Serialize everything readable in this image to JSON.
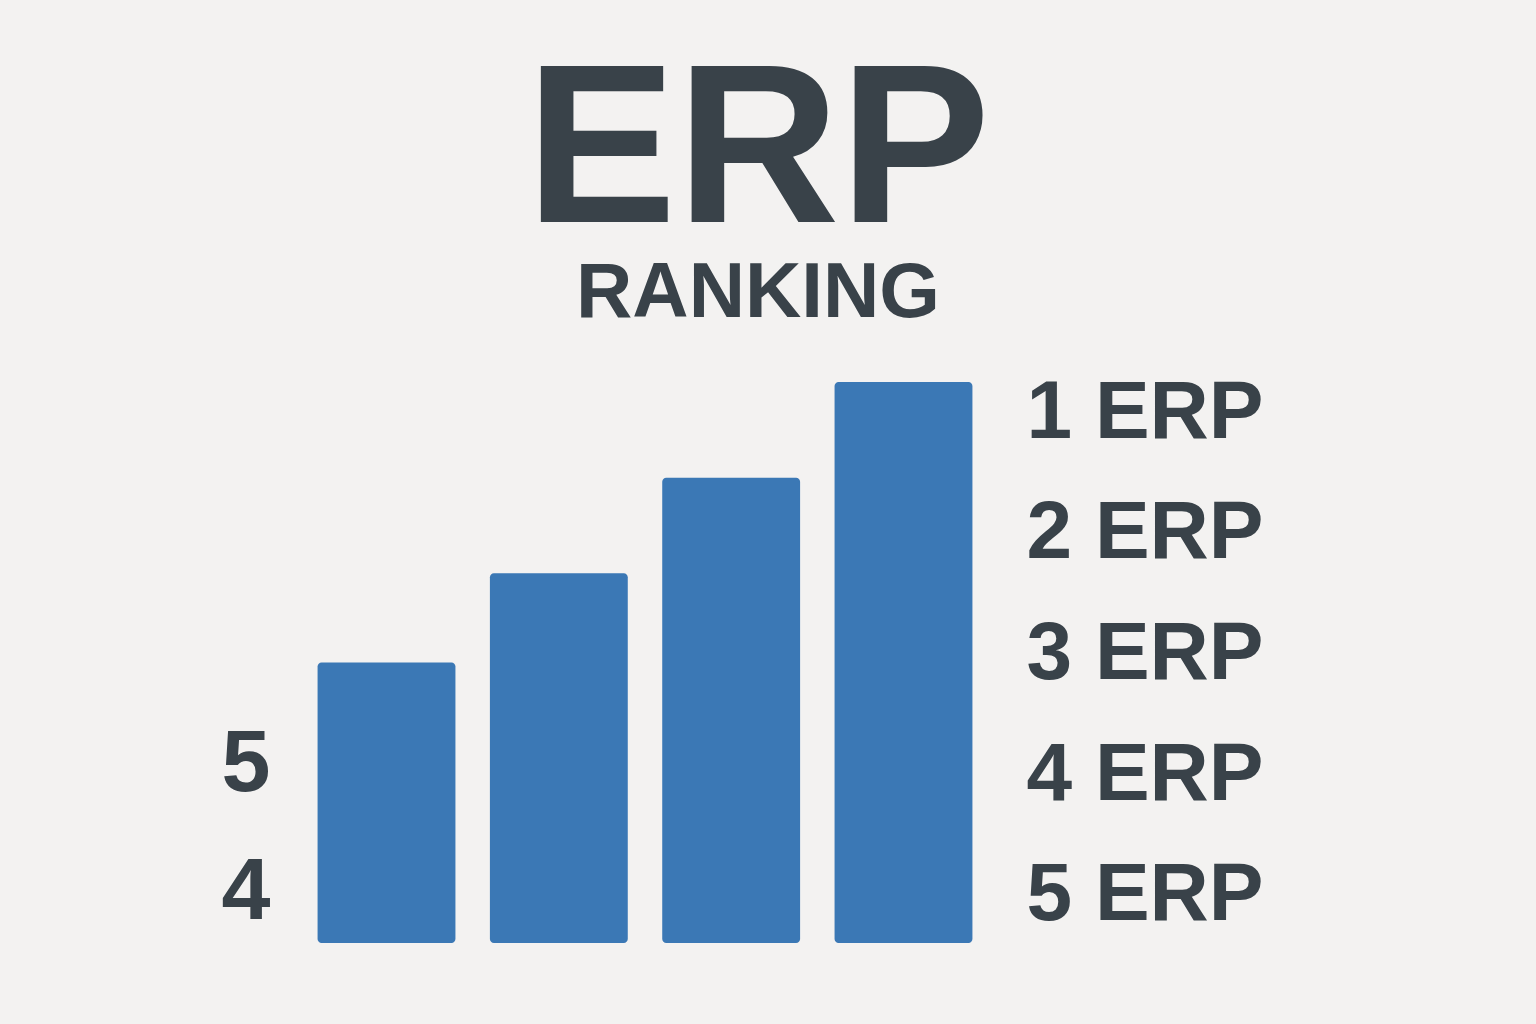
{
  "chart_data": {
    "type": "bar",
    "title": "ERP",
    "subtitle": "RANKING",
    "categories": [
      null,
      null,
      null,
      null
    ],
    "values": [
      5.8,
      6.5,
      7.25,
      8.0
    ],
    "color": "#3b78b5",
    "ylim": [
      3.6,
      8.0
    ],
    "yticks": [
      4,
      5
    ],
    "y2lim": [
      5.4,
      0.75
    ],
    "y2ticks": [
      {
        "value": 1,
        "label": "1 ERP"
      },
      {
        "value": 2,
        "label": "2 ERP"
      },
      {
        "value": 3,
        "label": "3 ERP"
      },
      {
        "value": 4,
        "label": "4 ERP"
      },
      {
        "value": 5,
        "label": "5 ERP"
      }
    ]
  }
}
